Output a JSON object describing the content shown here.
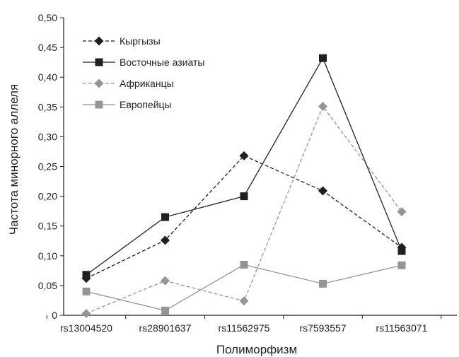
{
  "chart_data": {
    "type": "line",
    "title": "",
    "xlabel": "Полиморфизм",
    "ylabel": "Частота минорного аллеля",
    "categories": [
      "rs13004520",
      "rs28901637",
      "rs11562975",
      "rs7593557",
      "rs11563071"
    ],
    "ylim": [
      0,
      0.5
    ],
    "yticks": [
      "0",
      "0,05",
      "0,10",
      "0,15",
      "0,20",
      "0,25",
      "0,30",
      "0,35",
      "0,40",
      "0,45",
      "0,50"
    ],
    "grid": false,
    "legend_position": "top-left",
    "series": [
      {
        "name": "Кыргызы",
        "values": [
          0.062,
          0.126,
          0.268,
          0.209,
          0.114
        ],
        "color": "#231f20",
        "dash": true,
        "marker": "diamond"
      },
      {
        "name": "Восточные азиаты",
        "values": [
          0.068,
          0.165,
          0.2,
          0.432,
          0.108
        ],
        "color": "#231f20",
        "dash": false,
        "marker": "square"
      },
      {
        "name": "Африканцы",
        "values": [
          0.003,
          0.058,
          0.024,
          0.351,
          0.174
        ],
        "color": "#939598",
        "dash": true,
        "marker": "diamond"
      },
      {
        "name": "Европейцы",
        "values": [
          0.04,
          0.008,
          0.085,
          0.053,
          0.084
        ],
        "color": "#939598",
        "dash": false,
        "marker": "square"
      }
    ]
  }
}
